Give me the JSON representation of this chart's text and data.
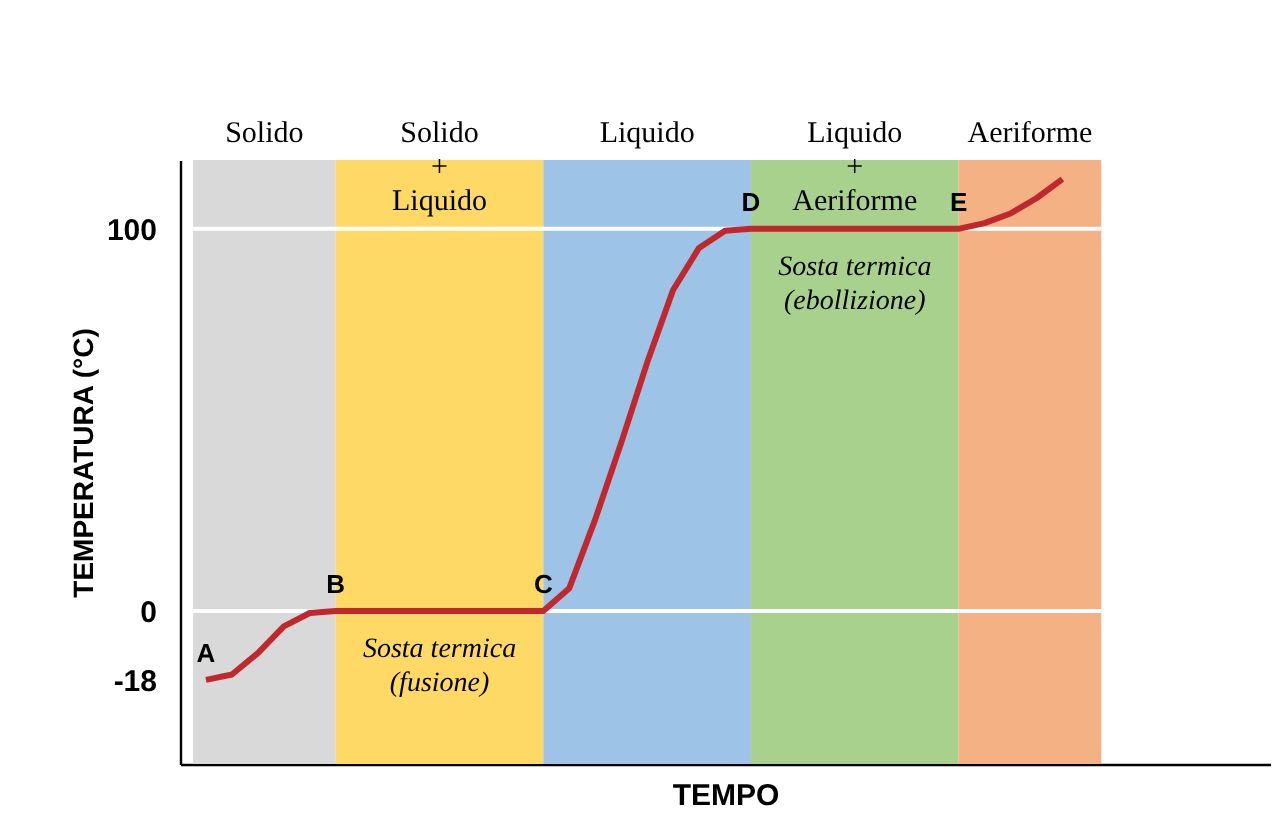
{
  "chart_data": {
    "type": "line",
    "xlabel": "TEMPO",
    "ylabel": "TEMPERATURA (°C)",
    "categories": [
      null,
      null,
      null,
      null,
      null,
      null,
      null,
      null,
      null,
      null,
      null,
      null,
      null,
      null,
      null,
      null,
      null,
      null,
      null,
      null,
      null,
      null,
      null,
      null,
      null,
      null,
      null,
      null,
      null,
      null,
      null,
      null,
      null,
      null
    ],
    "series": [
      {
        "color": "#c0282d",
        "values": [
          -18,
          -16.6,
          -11,
          -4,
          -0.5,
          0,
          0,
          0,
          0,
          0,
          0,
          0,
          0,
          0,
          6,
          24,
          44,
          65,
          84,
          95,
          99.5,
          100,
          100,
          100,
          100,
          100,
          100,
          100,
          100,
          100,
          101.5,
          104,
          108,
          113
        ],
        "value_labels": [
          "A",
          null,
          null,
          null,
          null,
          "B",
          null,
          null,
          null,
          null,
          null,
          null,
          null,
          "C",
          null,
          null,
          null,
          null,
          null,
          null,
          null,
          "D",
          null,
          null,
          null,
          null,
          null,
          null,
          null,
          "E",
          null,
          null,
          null,
          null
        ]
      }
    ],
    "ylim": [
      -40,
      118
    ],
    "yticks": [
      -18,
      0,
      100
    ],
    "tick_labels": "y",
    "grid": false,
    "marker": "none",
    "line_style": "solid",
    "ref_lines": [
      {
        "axis": "y",
        "value": 0,
        "color": "#ffffff"
      },
      {
        "axis": "y",
        "value": 100,
        "color": "#ffffff"
      }
    ],
    "annotations": [
      "Solido",
      "Solido\n+\nLiquido",
      "Liquido",
      "Liquido\n+\nAeriforme",
      "Aeriforme",
      "Sosta termica\n(fusione)",
      "Sosta termica\n(ebollizione)"
    ]
  }
}
